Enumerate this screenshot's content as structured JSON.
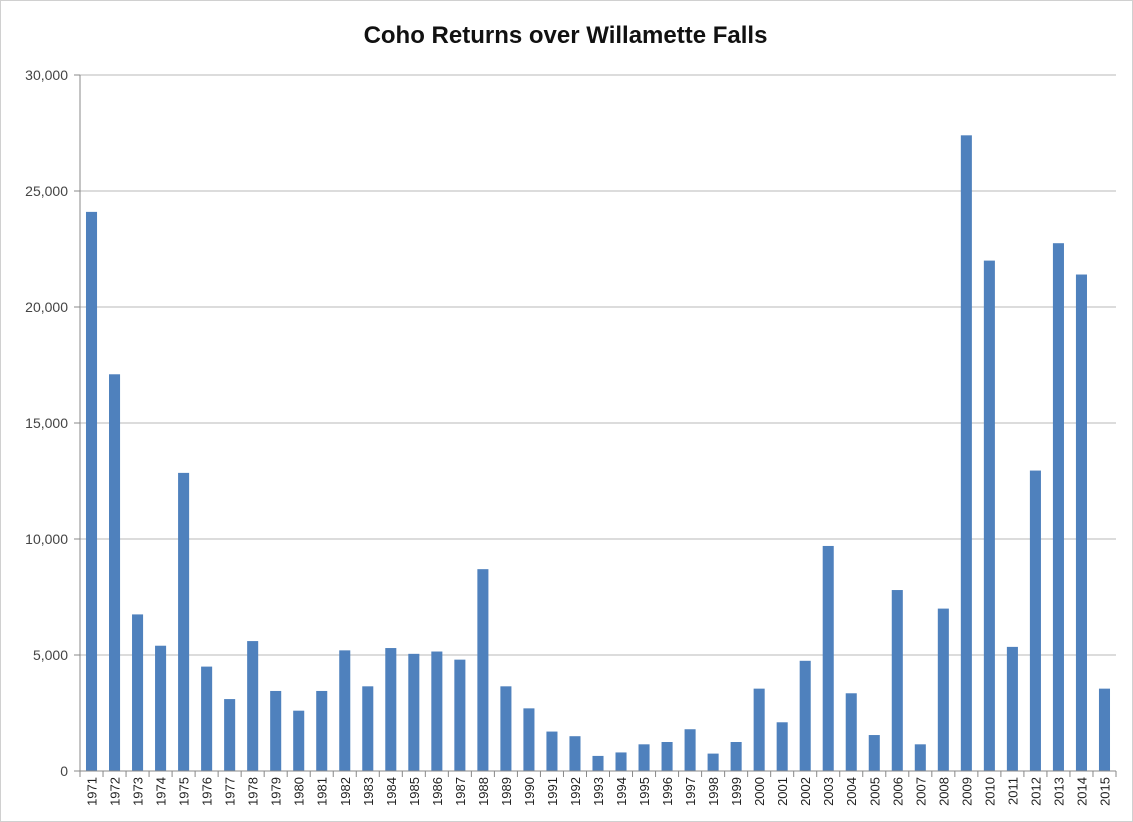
{
  "chart_data": {
    "type": "bar",
    "title": "Coho Returns over Willamette Falls",
    "xlabel": "",
    "ylabel": "",
    "ylim": [
      0,
      30000
    ],
    "yticks": [
      "0",
      "5,000",
      "10,000",
      "15,000",
      "20,000",
      "25,000",
      "30,000"
    ],
    "grid": true,
    "legend": "none",
    "bar_color": "#4f81bd",
    "categories": [
      "1971",
      "1972",
      "1973",
      "1974",
      "1975",
      "1976",
      "1977",
      "1978",
      "1979",
      "1980",
      "1981",
      "1982",
      "1983",
      "1984",
      "1985",
      "1986",
      "1987",
      "1988",
      "1989",
      "1990",
      "1991",
      "1992",
      "1993",
      "1994",
      "1995",
      "1996",
      "1997",
      "1998",
      "1999",
      "2000",
      "2001",
      "2002",
      "2003",
      "2004",
      "2005",
      "2006",
      "2007",
      "2008",
      "2009",
      "2010",
      "2011",
      "2012",
      "2013",
      "2014",
      "2015"
    ],
    "values": [
      24100,
      17100,
      6750,
      5400,
      12850,
      4500,
      3100,
      5600,
      3450,
      2600,
      3450,
      5200,
      3650,
      5300,
      5050,
      5150,
      4800,
      8700,
      3650,
      2700,
      1700,
      1500,
      650,
      800,
      1150,
      1250,
      1800,
      750,
      1250,
      3550,
      2100,
      4750,
      9700,
      3350,
      1550,
      7800,
      1150,
      7000,
      27400,
      22000,
      5350,
      12950,
      22750,
      21400,
      3550
    ]
  }
}
